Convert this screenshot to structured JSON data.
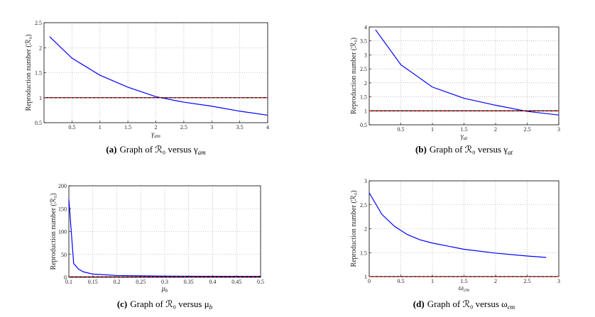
{
  "chart_data": [
    {
      "type": "line",
      "ylabel": "Reproduction number (ℛ₀)",
      "xlabel_symbol": "γ",
      "xlabel_sub": "am",
      "xlim": [
        0,
        4
      ],
      "xticks": [
        0.5,
        1,
        1.5,
        2,
        2.5,
        3,
        3.5,
        4
      ],
      "ylim": [
        0.5,
        2.5
      ],
      "yticks": [
        0.5,
        1,
        1.5,
        2,
        2.5
      ],
      "grid": true,
      "series": [
        {
          "color": "#0000ff",
          "x": [
            0.1,
            0.5,
            1,
            1.5,
            2,
            2.5,
            3,
            3.5,
            4
          ],
          "values": [
            2.22,
            1.79,
            1.45,
            1.21,
            1.02,
            0.91,
            0.83,
            0.73,
            0.65
          ]
        },
        {
          "color": "#000000",
          "dash": true,
          "x": [
            0,
            4
          ],
          "values": [
            1,
            1
          ]
        }
      ],
      "caption": {
        "label": "(a)",
        "text": "Graph of ℛ₀ versus γ",
        "sub": "am"
      }
    },
    {
      "type": "line",
      "ylabel": "Reproduction number (ℛ₀)",
      "xlabel_symbol": "γ",
      "xlabel_sub": "at",
      "xlim": [
        0,
        3
      ],
      "xticks": [
        0.5,
        1,
        1.5,
        2,
        2.5,
        3
      ],
      "ylim": [
        0.5,
        4
      ],
      "yticks": [
        0.5,
        1,
        1.5,
        2,
        2.5,
        3,
        3.5,
        4
      ],
      "grid": true,
      "series": [
        {
          "color": "#0000ff",
          "x": [
            0.1,
            0.5,
            1,
            1.5,
            2,
            2.5,
            3
          ],
          "values": [
            3.9,
            2.65,
            1.85,
            1.45,
            1.2,
            0.98,
            0.85
          ]
        },
        {
          "color": "#000000",
          "dash": true,
          "x": [
            0,
            3
          ],
          "values": [
            1,
            1
          ]
        }
      ],
      "caption": {
        "label": "(b)",
        "text": "Graph of ℛ₀ versus γ",
        "sub": "at"
      }
    },
    {
      "type": "line",
      "ylabel": "Reproduction number (ℛ₀)",
      "xlabel_symbol": "μ",
      "xlabel_sub": "b",
      "xlim": [
        0.1,
        0.5
      ],
      "xticks": [
        0.1,
        0.15,
        0.2,
        0.25,
        0.3,
        0.35,
        0.4,
        0.45,
        0.5
      ],
      "ylim": [
        0,
        200
      ],
      "yticks": [
        0,
        50,
        100,
        150,
        200
      ],
      "grid": true,
      "series": [
        {
          "color": "#0000ff",
          "x": [
            0.1,
            0.11,
            0.12,
            0.13,
            0.15,
            0.2,
            0.3,
            0.5
          ],
          "values": [
            170,
            30,
            18,
            12,
            7,
            4,
            2.5,
            2
          ]
        },
        {
          "color": "#000000",
          "dash": true,
          "x": [
            0.1,
            0.5
          ],
          "values": [
            1,
            1
          ]
        }
      ],
      "caption": {
        "label": "(c)",
        "text": "Graph of ℛ₀ versus μ",
        "sub": "b"
      }
    },
    {
      "type": "line",
      "ylabel": "Reproduction number (ℛ₀)",
      "xlabel_symbol": "ω",
      "xlabel_sub": "cm",
      "xlim": [
        0,
        3
      ],
      "xticks": [
        0,
        0.5,
        1,
        1.5,
        2,
        2.5,
        3
      ],
      "ylim": [
        1,
        3
      ],
      "yticks": [
        1,
        1.5,
        2,
        2.5,
        3
      ],
      "grid": true,
      "series": [
        {
          "color": "#0000ff",
          "x": [
            0,
            0.2,
            0.4,
            0.6,
            0.8,
            1,
            1.5,
            2,
            2.5,
            2.8
          ],
          "values": [
            2.75,
            2.3,
            2.05,
            1.88,
            1.77,
            1.7,
            1.57,
            1.49,
            1.43,
            1.4
          ]
        },
        {
          "color": "#000000",
          "dash": true,
          "x": [
            0,
            3
          ],
          "values": [
            1,
            1
          ]
        }
      ],
      "caption": {
        "label": "(d)",
        "text": "Graph of ℛ₀ versus ω",
        "sub": "cm"
      }
    }
  ]
}
